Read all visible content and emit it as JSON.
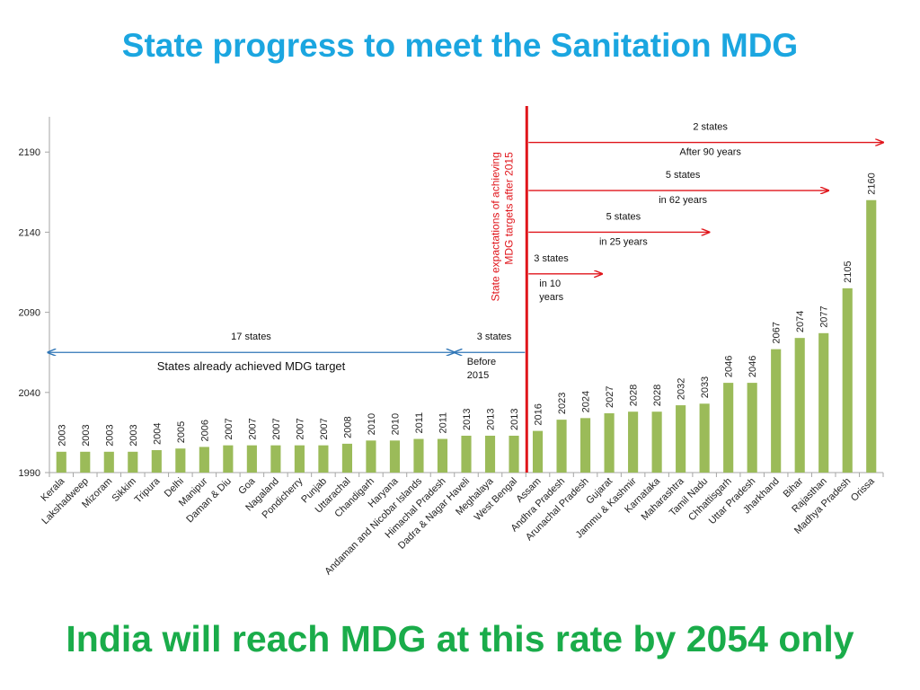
{
  "title": "State progress to meet the Sanitation MDG",
  "conclusion": "India will reach MDG at this rate by 2054 only",
  "colors": {
    "bar": "#9bbb59",
    "axis": "#a6a6a6",
    "blue_arrow": "#2e75b6",
    "red": "#e0151b",
    "title": "#1ba6e0",
    "conclusion": "#1aac4a"
  },
  "chart_data": {
    "type": "bar",
    "categories": [
      "Kerala",
      "Lakshadweep",
      "Mizoram",
      "Sikkim",
      "Tripura",
      "Delhi",
      "Manipur",
      "Daman & Diu",
      "Goa",
      "Nagaland",
      "Pondicherry",
      "Punjab",
      "Uttarachal",
      "Chandigarh",
      "Haryana",
      "Andaman and Nicobar Islands",
      "Himachal Pradesh",
      "Dadra & Nagar Haveli",
      "Meghalaya",
      "West Bengal",
      "Assam",
      "Andhra Pradesh",
      "Arunachal Pradesh",
      "Gujarat",
      "Jammu & Kashmir",
      "Karnataka",
      "Maharashtra",
      "Tamil Nadu",
      "Chhattisgarh",
      "Uttar Pradesh",
      "Jharkhand",
      "Bihar",
      "Rajasthan",
      "Madhya Pradesh",
      "Orissa"
    ],
    "values": [
      2003,
      2003,
      2003,
      2003,
      2004,
      2005,
      2006,
      2007,
      2007,
      2007,
      2007,
      2007,
      2008,
      2010,
      2010,
      2011,
      2011,
      2013,
      2013,
      2013,
      2016,
      2023,
      2024,
      2027,
      2028,
      2028,
      2032,
      2033,
      2046,
      2046,
      2067,
      2074,
      2077,
      2105,
      2160
    ],
    "data_labels": [
      "2003",
      "2003",
      "2003",
      "2003",
      "2004",
      "2005",
      "2006",
      "2007",
      "2007",
      "2007",
      "2007",
      "2007",
      "2008",
      "2010",
      "2010",
      "2011",
      "2011",
      "2013",
      "2013",
      "2013",
      "2016",
      "2023",
      "2024",
      "2027",
      "2028",
      "2028",
      "2032",
      "2033",
      "2046",
      "2046",
      "2067",
      "2074",
      "2077",
      "2105",
      "2160"
    ],
    "y_ticks": [
      "1990",
      "2040",
      "2090",
      "2140",
      "2190"
    ],
    "ylim": [
      1990,
      2212
    ],
    "grid": false,
    "legend": "none",
    "divider_after_index": 19,
    "divider_label_lines": [
      "State expactations of achieving",
      "MDG targets after 2015"
    ],
    "annotations": [
      {
        "id": "achieved",
        "direction": "both",
        "from_index": 0,
        "to_index": 16.5,
        "y": 2065,
        "color": "blue",
        "top_lines": [
          "17 states"
        ],
        "bottom_lines": [
          "States already achieved MDG target"
        ]
      },
      {
        "id": "before2015",
        "direction": "left",
        "from_index": 19.5,
        "to_index": 16.5,
        "y": 2065,
        "color": "blue",
        "top_lines": [
          "3 states"
        ],
        "bottom_lines": [
          "Before",
          "2015"
        ]
      },
      {
        "id": "in10",
        "direction": "right",
        "from_index": 19.5,
        "to_index": 22.7,
        "y": 2114,
        "color": "red",
        "top_lines": [
          "3 states"
        ],
        "bottom_lines": [
          "in 10",
          "years"
        ]
      },
      {
        "id": "in25",
        "direction": "right",
        "from_index": 19.5,
        "to_index": 27.2,
        "y": 2140,
        "color": "red",
        "top_lines": [
          "5 states"
        ],
        "bottom_lines": [
          "in 25 years"
        ]
      },
      {
        "id": "in62",
        "direction": "right",
        "from_index": 19.5,
        "to_index": 32.2,
        "y": 2166,
        "color": "red",
        "top_lines": [
          "5 states"
        ],
        "bottom_lines": [
          "in 62 years"
        ]
      },
      {
        "id": "after90",
        "direction": "right",
        "from_index": 19.5,
        "to_index": 34.5,
        "y": 2196,
        "color": "red",
        "top_lines": [
          "2 states"
        ],
        "bottom_lines": [
          "After 90  years"
        ]
      }
    ]
  }
}
